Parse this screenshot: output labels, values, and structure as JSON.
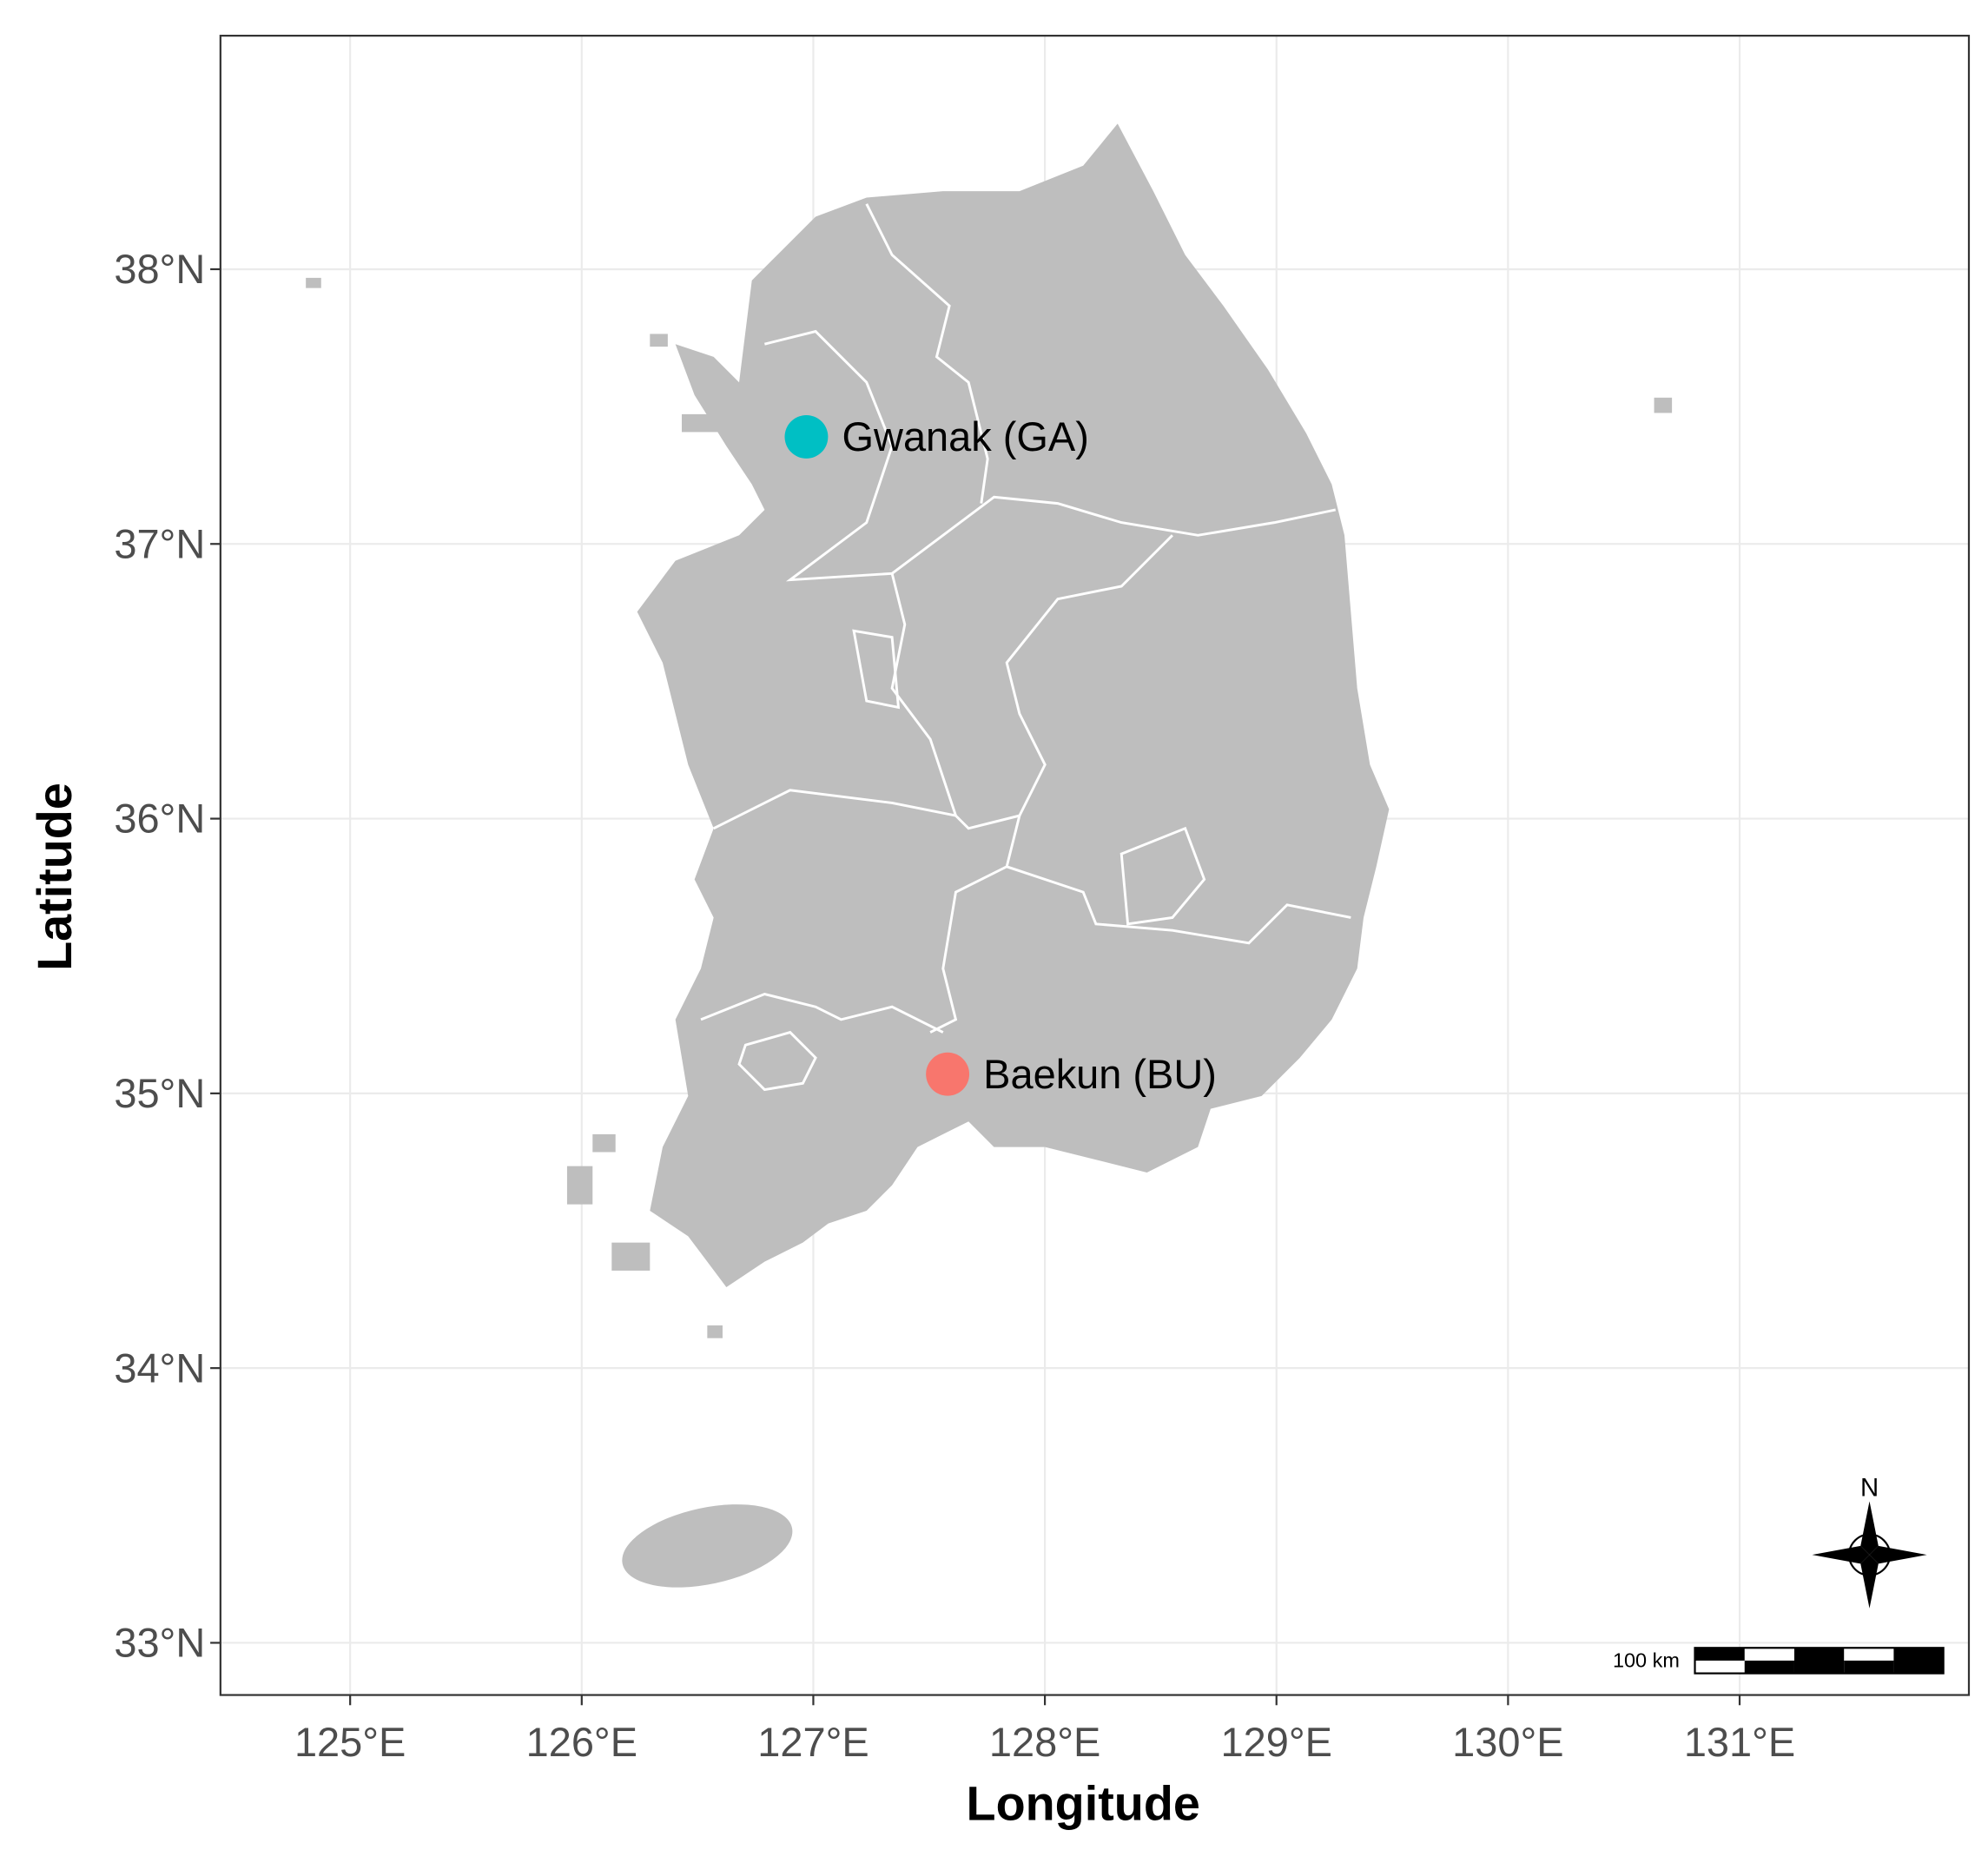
{
  "chart_data": {
    "type": "map",
    "xlabel": "Longitude",
    "ylabel": "Latitude",
    "xlim": [
      124.44,
      131.99
    ],
    "ylim": [
      32.81,
      38.85
    ],
    "xticks": [
      {
        "value": 125,
        "label": "125°E"
      },
      {
        "value": 126,
        "label": "126°E"
      },
      {
        "value": 127,
        "label": "127°E"
      },
      {
        "value": 128,
        "label": "128°E"
      },
      {
        "value": 129,
        "label": "129°E"
      },
      {
        "value": 130,
        "label": "130°E"
      },
      {
        "value": 131,
        "label": "131°E"
      }
    ],
    "yticks": [
      {
        "value": 33,
        "label": "33°N"
      },
      {
        "value": 34,
        "label": "34°N"
      },
      {
        "value": 35,
        "label": "35°N"
      },
      {
        "value": 36,
        "label": "36°N"
      },
      {
        "value": 37,
        "label": "37°N"
      },
      {
        "value": 38,
        "label": "38°N"
      }
    ],
    "grid": true,
    "series": [
      {
        "name": "Gwanak (GA)",
        "color": "#00bfc4",
        "x": [
          126.97
        ],
        "values": [
          37.39
        ]
      },
      {
        "name": "Baekun (BU)",
        "color": "#f8766d",
        "x": [
          127.58
        ],
        "values": [
          35.07
        ]
      }
    ],
    "north_arrow": {
      "label": "N"
    },
    "scale_bar": {
      "label": "100 km"
    }
  }
}
